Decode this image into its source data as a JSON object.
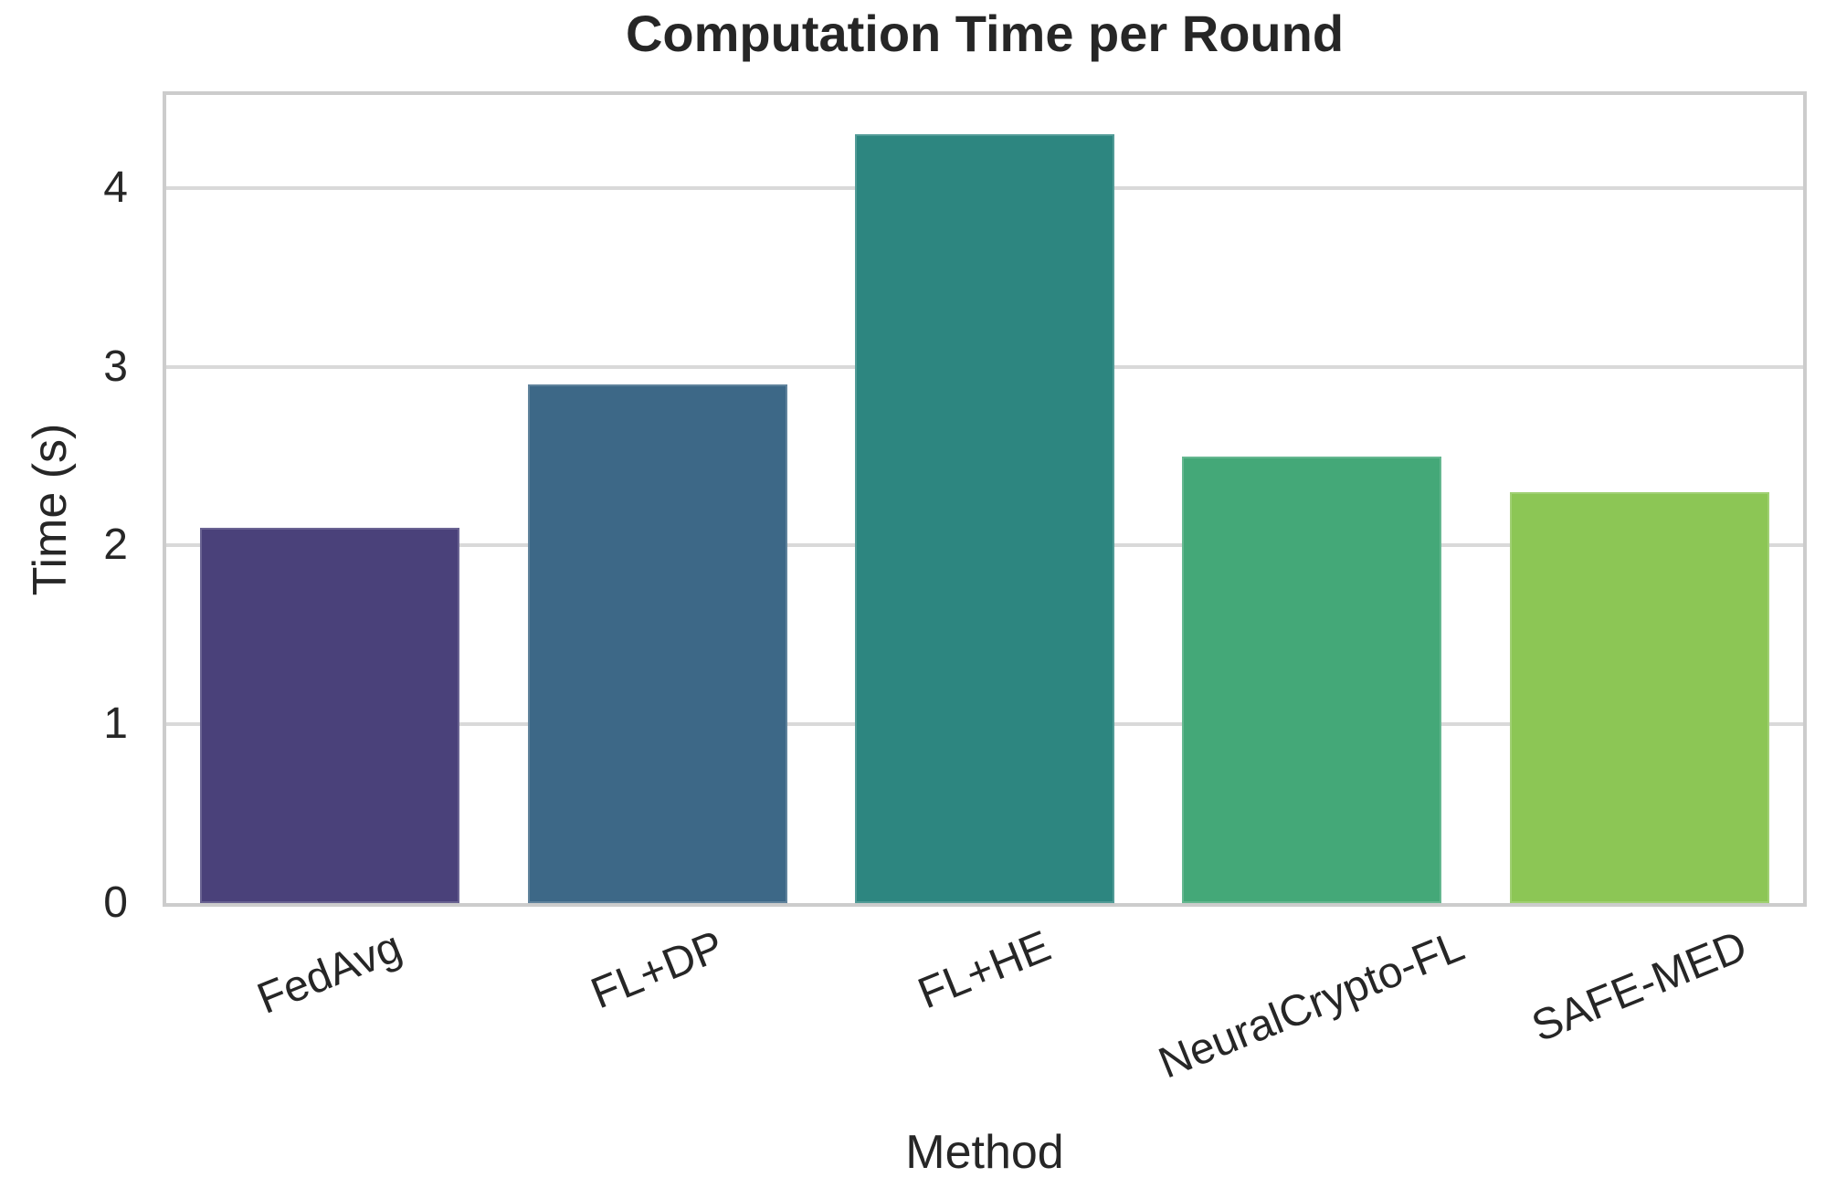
{
  "chart_data": {
    "type": "bar",
    "title": "Computation Time per Round",
    "xlabel": "Method",
    "ylabel": "Time (s)",
    "categories": [
      "FedAvg",
      "FL+DP",
      "FL+HE",
      "NeuralCrypto-FL",
      "SAFE-MED"
    ],
    "values": [
      2.1,
      2.9,
      4.3,
      2.5,
      2.3
    ],
    "bar_colors": [
      "#4a417a",
      "#3d6887",
      "#2d8680",
      "#44a878",
      "#8cc655"
    ],
    "yticks": [
      0,
      1,
      2,
      3,
      4
    ],
    "ylim": [
      0,
      4.52
    ],
    "grid": "horizontal",
    "grid_color": "#d9d9d9",
    "spine_color": "#cccccc",
    "text_color": "#262626",
    "x_tick_rotation_deg": 22,
    "legend": "none",
    "background": "#ffffff"
  }
}
